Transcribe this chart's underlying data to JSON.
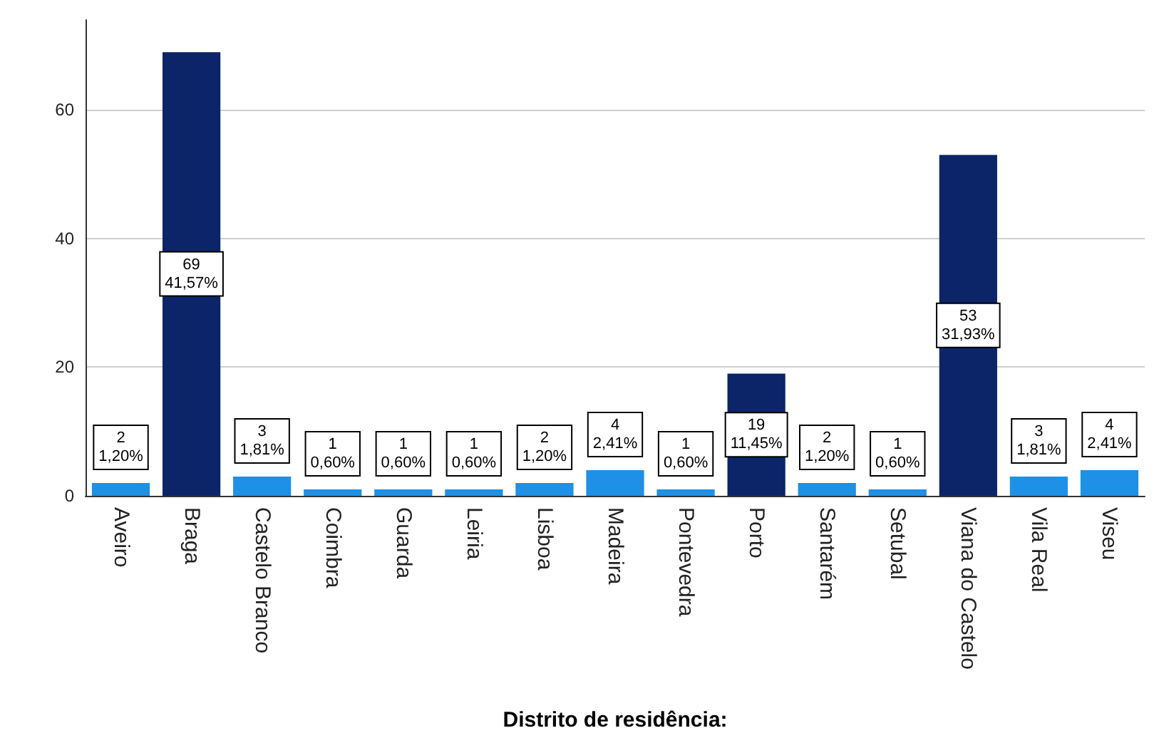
{
  "chart_data": {
    "type": "bar",
    "xlabel": "Distrito de residência:",
    "categories": [
      "Aveiro",
      "Braga",
      "Castelo Branco",
      "Coimbra",
      "Guarda",
      "Leiria",
      "Lisboa",
      "Madeira",
      "Pontevedra",
      "Porto",
      "Santarém",
      "Setubal",
      "Viana do Castelo",
      "Vila Real",
      "Viseu"
    ],
    "values": [
      2,
      69,
      3,
      1,
      1,
      1,
      2,
      4,
      1,
      19,
      2,
      1,
      53,
      3,
      4
    ],
    "colors": [
      "#1e90e6",
      "#0c2468",
      "#1e90e6",
      "#1e90e6",
      "#1e90e6",
      "#1e90e6",
      "#1e90e6",
      "#1e90e6",
      "#1e90e6",
      "#0c2468",
      "#1e90e6",
      "#1e90e6",
      "#0c2468",
      "#1e90e6",
      "#1e90e6"
    ],
    "value_labels": [
      "2\n1,20%",
      "69\n41,57%",
      "3\n1,81%",
      "1\n0,60%",
      "1\n0,60%",
      "1\n0,60%",
      "2\n1,20%",
      "4\n2,41%",
      "1\n0,60%",
      "19\n11,45%",
      "2\n1,20%",
      "1\n0,60%",
      "53\n31,93%",
      "3\n1,81%",
      "4\n2,41%"
    ],
    "ylim": [
      0,
      74
    ],
    "yticks": [
      0,
      20,
      40,
      60
    ],
    "grid": "y"
  }
}
